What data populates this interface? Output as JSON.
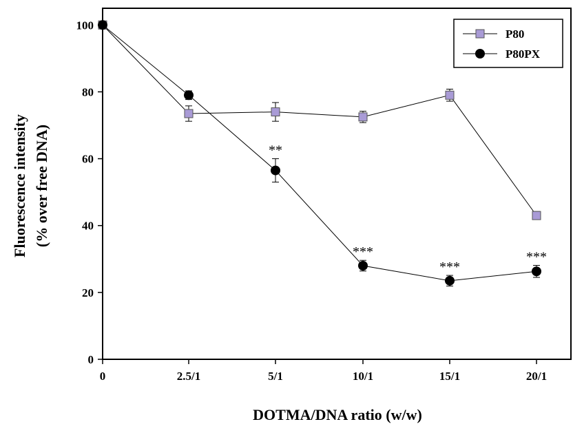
{
  "chart_data": {
    "type": "line",
    "xlabel": "DOTMA/DNA ratio (w/w)",
    "ylabel_line1": "Fluorescence intensity",
    "ylabel_line2": "(% over free DNA)",
    "categories": [
      "0",
      "2.5/1",
      "5/1",
      "10/1",
      "15/1",
      "20/1"
    ],
    "ylim": [
      0,
      105
    ],
    "yticks": [
      0,
      20,
      40,
      60,
      80,
      100
    ],
    "legend_position": "top-right",
    "series": [
      {
        "name": "P80",
        "marker": "square",
        "color": "#a99bd6",
        "values": [
          100,
          73.5,
          74,
          72.5,
          79,
          43
        ],
        "errors": [
          0.5,
          2.3,
          2.8,
          1.7,
          1.8,
          1.2
        ]
      },
      {
        "name": "P80PX",
        "marker": "circle",
        "color": "#000000",
        "values": [
          100,
          79,
          56.5,
          28,
          23.5,
          26.3
        ],
        "errors": [
          0.5,
          1.3,
          3.5,
          1.6,
          1.6,
          1.8
        ]
      }
    ],
    "annotations": [
      {
        "category": "5/1",
        "text": "**",
        "series": "P80PX"
      },
      {
        "category": "10/1",
        "text": "***",
        "series": "P80PX"
      },
      {
        "category": "15/1",
        "text": "***",
        "series": "P80PX"
      },
      {
        "category": "20/1",
        "text": "***",
        "series": "P80PX"
      }
    ]
  }
}
